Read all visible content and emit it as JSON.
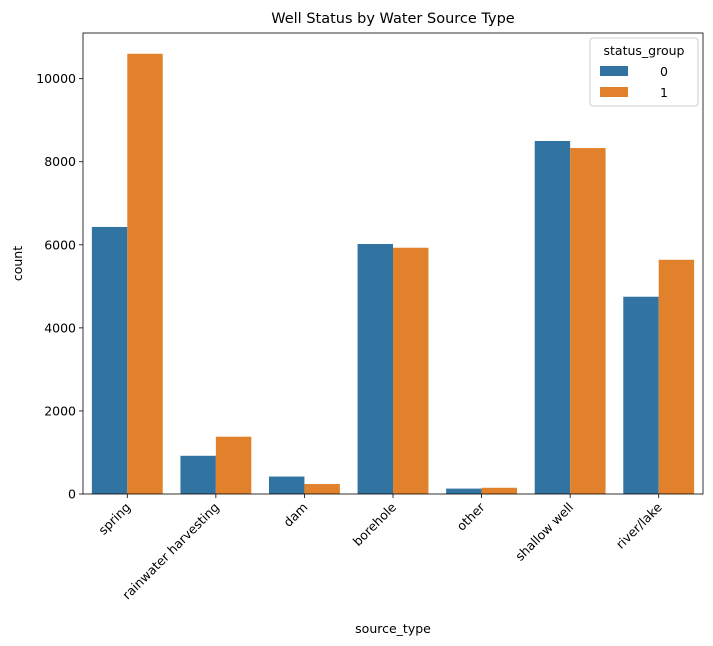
{
  "chart_data": {
    "type": "bar",
    "title": "Well Status by Water Source Type",
    "xlabel": "source_type",
    "ylabel": "count",
    "categories": [
      "spring",
      "rainwater harvesting",
      "dam",
      "borehole",
      "other",
      "shallow well",
      "river/lake"
    ],
    "series": [
      {
        "name": "0",
        "color": "#3274a1",
        "values": [
          6430,
          920,
          420,
          6020,
          130,
          8500,
          4750
        ]
      },
      {
        "name": "1",
        "color": "#e1812c",
        "values": [
          10600,
          1380,
          240,
          5930,
          150,
          8330,
          5640
        ]
      }
    ],
    "ylim": [
      0,
      11100
    ],
    "yticks": [
      0,
      2000,
      4000,
      6000,
      8000,
      10000
    ],
    "ytick_labels": [
      "0",
      "2000",
      "4000",
      "6000",
      "8000",
      "10000"
    ],
    "grid": false,
    "legend": {
      "title": "status_group",
      "placement": "top-right"
    }
  }
}
